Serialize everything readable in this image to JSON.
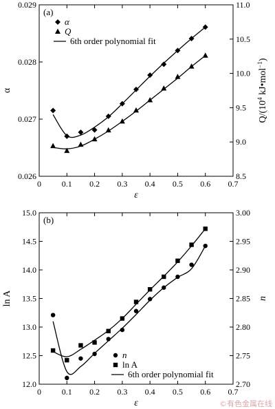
{
  "chart_data": [
    {
      "type": "scatter",
      "panel_label": "(a)",
      "xlabel": "ε",
      "ylabel_left": "α",
      "ylabel_right": "Q/(10⁴ kJ•mol⁻¹)",
      "ylabel_right_parts": {
        "prefix": "Q/(10",
        "sup1": "4",
        "mid": " kJ•mol",
        "sup2": "−1",
        "suffix": ")"
      },
      "xlim": [
        0,
        0.7
      ],
      "x_ticks": [
        0.0,
        0.1,
        0.2,
        0.3,
        0.4,
        0.5,
        0.6,
        0.7
      ],
      "x_tick_labels": [
        "0",
        "0.1",
        "0.2",
        "0.3",
        "0.4",
        "0.5",
        "0.6",
        "0.7"
      ],
      "ylim_left": [
        0.026,
        0.029
      ],
      "y_left_ticks": [
        0.026,
        0.027,
        0.028,
        0.029
      ],
      "y_left_tick_labels": [
        "0.026",
        "0.027",
        "0.028",
        "0.029"
      ],
      "ylim_right": [
        8.5,
        11.0
      ],
      "y_right_ticks": [
        8.5,
        9.0,
        9.5,
        10.0,
        10.5,
        11.0
      ],
      "y_right_tick_labels": [
        "8.5",
        "9.0",
        "9.5",
        "10.0",
        "10.5",
        "11.0"
      ],
      "legend_position": "top-left",
      "legend": [
        {
          "label": "α",
          "marker": "diamond"
        },
        {
          "label": "Q",
          "marker": "triangle"
        },
        {
          "label": "6th order polynomial fit",
          "marker": "line"
        }
      ],
      "series": [
        {
          "name": "α",
          "axis": "left",
          "marker": "diamond",
          "x": [
            0.05,
            0.1,
            0.15,
            0.2,
            0.25,
            0.3,
            0.35,
            0.4,
            0.45,
            0.5,
            0.55,
            0.6
          ],
          "y": [
            0.02715,
            0.0267,
            0.02677,
            0.02681,
            0.02705,
            0.02727,
            0.02752,
            0.02777,
            0.02796,
            0.0282,
            0.02841,
            0.02861
          ],
          "fit_y": [
            0.02708,
            0.02671,
            0.02672,
            0.02686,
            0.02704,
            0.02727,
            0.02751,
            0.02775,
            0.02798,
            0.0282,
            0.02841,
            0.02861
          ]
        },
        {
          "name": "Q",
          "axis": "right",
          "marker": "triangle",
          "x": [
            0.05,
            0.1,
            0.15,
            0.2,
            0.25,
            0.3,
            0.35,
            0.4,
            0.45,
            0.5,
            0.55,
            0.6
          ],
          "y": [
            8.94,
            8.87,
            8.96,
            9.04,
            9.17,
            9.3,
            9.46,
            9.61,
            9.78,
            9.95,
            10.1,
            10.26
          ],
          "fit_y": [
            8.92,
            8.9,
            8.94,
            9.04,
            9.16,
            9.3,
            9.45,
            9.61,
            9.77,
            9.93,
            10.1,
            10.26
          ]
        }
      ]
    },
    {
      "type": "scatter",
      "panel_label": "(b)",
      "xlabel": "ε",
      "ylabel_left": "ln A",
      "ylabel_right": "n",
      "xlim": [
        0,
        0.7
      ],
      "x_ticks": [
        0.0,
        0.1,
        0.2,
        0.3,
        0.4,
        0.5,
        0.6,
        0.7
      ],
      "x_tick_labels": [
        "0",
        "0.1",
        "0.2",
        "0.3",
        "0.4",
        "0.5",
        "0.6",
        "0.7"
      ],
      "ylim_left": [
        12.0,
        15.0
      ],
      "y_left_ticks": [
        12.0,
        12.5,
        13.0,
        13.5,
        14.0,
        14.5,
        15.0
      ],
      "y_left_tick_labels": [
        "12.0",
        "12.5",
        "13.0",
        "13.5",
        "14.0",
        "14.5",
        "15.0"
      ],
      "ylim_right": [
        2.7,
        3.0
      ],
      "y_right_ticks": [
        2.7,
        2.75,
        2.8,
        2.85,
        2.9,
        2.95,
        3.0
      ],
      "y_right_tick_labels": [
        "2.70",
        "2.75",
        "2.80",
        "2.85",
        "2.90",
        "2.95",
        "3.00"
      ],
      "legend_position": "bottom-right",
      "legend": [
        {
          "label": "n",
          "marker": "circle"
        },
        {
          "label": "ln A",
          "marker": "square"
        },
        {
          "label": "6th order polynomial fit",
          "marker": "line"
        }
      ],
      "series": [
        {
          "name": "n",
          "axis": "right",
          "marker": "circle",
          "x": [
            0.05,
            0.1,
            0.15,
            0.2,
            0.25,
            0.3,
            0.35,
            0.4,
            0.45,
            0.5,
            0.55,
            0.6
          ],
          "y": [
            2.821,
            2.711,
            2.745,
            2.753,
            2.779,
            2.795,
            2.828,
            2.849,
            2.869,
            2.888,
            2.909,
            2.942
          ],
          "fit_y": [
            2.81,
            2.722,
            2.731,
            2.754,
            2.776,
            2.798,
            2.822,
            2.847,
            2.869,
            2.887,
            2.902,
            2.942
          ]
        },
        {
          "name": "ln A",
          "axis": "left",
          "marker": "square",
          "x": [
            0.05,
            0.1,
            0.15,
            0.2,
            0.25,
            0.3,
            0.35,
            0.4,
            0.45,
            0.5,
            0.55,
            0.6
          ],
          "y": [
            12.59,
            12.42,
            12.68,
            12.73,
            12.93,
            13.15,
            13.44,
            13.66,
            13.88,
            14.16,
            14.44,
            14.72
          ],
          "fit_y": [
            12.57,
            12.48,
            12.61,
            12.77,
            12.94,
            13.15,
            13.4,
            13.65,
            13.89,
            14.14,
            14.42,
            14.72
          ]
        }
      ]
    }
  ],
  "watermark": "©有色金属在线",
  "colors": {
    "ink": "#000000",
    "background": "#ffffff",
    "watermark": "#d8a8a8"
  }
}
